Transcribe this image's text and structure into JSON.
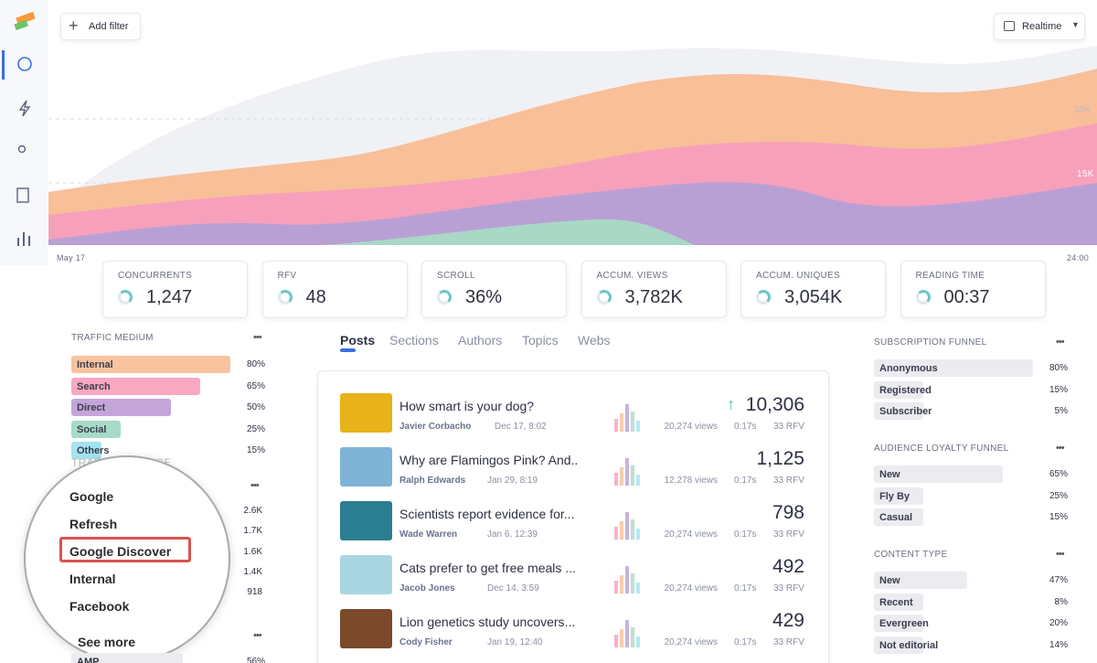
{
  "toolbar": {
    "add_filter": "Add filter",
    "range": "Realtime"
  },
  "chart": {
    "labels": [
      "30K",
      "15K"
    ],
    "start": "May 17",
    "end": "24:00"
  },
  "metrics": [
    {
      "label": "CONCURRENTS",
      "value": "1,247"
    },
    {
      "label": "RFV",
      "value": "48"
    },
    {
      "label": "SCROLL",
      "value": "36%"
    },
    {
      "label": "ACCUM. VIEWS",
      "value": "3,782K"
    },
    {
      "label": "ACCUM. UNIQUES",
      "value": "3,054K"
    },
    {
      "label": "READING TIME",
      "value": "00:37"
    }
  ],
  "traffic_medium": {
    "title": "TRAFFIC MEDIUM",
    "rows": [
      {
        "label": "Internal",
        "value": "80%"
      },
      {
        "label": "Search",
        "value": "65%"
      },
      {
        "label": "Direct",
        "value": "50%"
      },
      {
        "label": "Social",
        "value": "25%"
      },
      {
        "label": "Others",
        "value": "15%"
      }
    ]
  },
  "traffic_source": {
    "title": "TRAFFIC SOURCE",
    "rows": [
      {
        "label": "Google",
        "value": "2.6K"
      },
      {
        "label": "Refresh",
        "value": "1.7K"
      },
      {
        "label": "Google Discover",
        "value": "1.6K"
      },
      {
        "label": "Internal",
        "value": "1.4K"
      },
      {
        "label": "Facebook",
        "value": "918"
      }
    ],
    "see_more": "See more"
  },
  "next_section": {
    "rows": [
      {
        "label": "AMP",
        "value": "56%"
      }
    ]
  },
  "tabs": [
    "Posts",
    "Sections",
    "Authors",
    "Topics",
    "Webs"
  ],
  "posts": [
    {
      "title": "How smart is your dog?",
      "author": "Javier Corbacho",
      "date": "Dec 17, 8:02",
      "views": "20,274 views",
      "time": "0:17s",
      "rfv": "33 RFV",
      "count": "10,306"
    },
    {
      "title": "Why are Flamingos Pink? And..",
      "author": "Ralph Edwards",
      "date": "Jan 29, 8:19",
      "views": "12,278 views",
      "time": "0:17s",
      "rfv": "33 RFV",
      "count": "1,125"
    },
    {
      "title": "Scientists report evidence for...",
      "author": "Wade Warren",
      "date": "Jan 6, 12:39",
      "views": "20,274 views",
      "time": "0:17s",
      "rfv": "33 RFV",
      "count": "798"
    },
    {
      "title": "Cats prefer to get free meals ...",
      "author": "Jacob Jones",
      "date": "Dec 14, 3:59",
      "views": "20,274 views",
      "time": "0:17s",
      "rfv": "33 RFV",
      "count": "492"
    },
    {
      "title": "Lion genetics study uncovers...",
      "author": "Cody Fisher",
      "date": "Jan 19, 12:40",
      "views": "20,274 views",
      "time": "0:17s",
      "rfv": "33 RFV",
      "count": "429"
    }
  ],
  "funnels": [
    {
      "title": "SUBSCRIPTION FUNNEL",
      "rows": [
        {
          "label": "Anonymous",
          "value": "80%"
        },
        {
          "label": "Registered",
          "value": "15%"
        },
        {
          "label": "Subscriber",
          "value": "5%"
        }
      ]
    },
    {
      "title": "AUDIENCE LOYALTY FUNNEL",
      "rows": [
        {
          "label": "New",
          "value": "65%"
        },
        {
          "label": "Fly By",
          "value": "25%"
        },
        {
          "label": "Casual",
          "value": "15%"
        }
      ]
    },
    {
      "title": "CONTENT TYPE",
      "rows": [
        {
          "label": "New",
          "value": "47%"
        },
        {
          "label": "Recent",
          "value": "8%"
        },
        {
          "label": "Evergreen",
          "value": "20%"
        },
        {
          "label": "Not editorial",
          "value": "14%"
        }
      ]
    }
  ]
}
